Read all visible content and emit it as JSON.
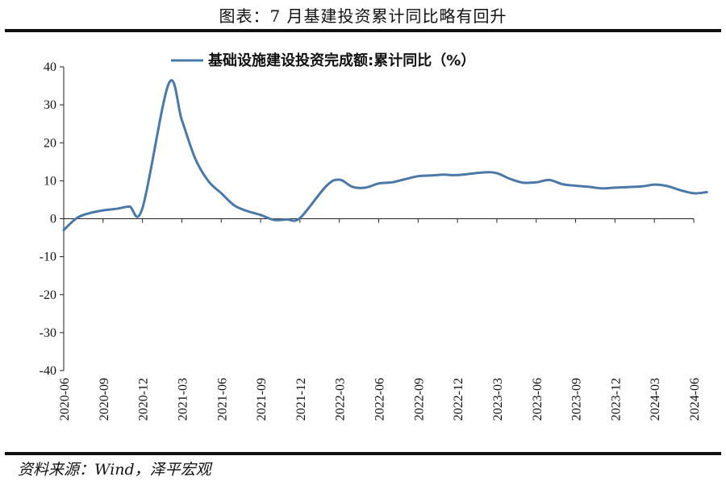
{
  "figure": {
    "title": "图表：7 月基建投资累计同比略有回升",
    "source": "资料来源：Wind，泽平宏观"
  },
  "colors": {
    "series": "#4a78a8",
    "axis": "#222222",
    "text": "#111111"
  },
  "chart_data": {
    "type": "line",
    "title": "",
    "xlabel": "",
    "ylabel": "",
    "ylim": [
      -40,
      40
    ],
    "yticks": [
      -40,
      -30,
      -20,
      -10,
      0,
      10,
      20,
      30,
      40
    ],
    "grid": false,
    "legend_position": "top-center",
    "x_tick_labels": [
      "2020-06",
      "2020-09",
      "2020-12",
      "2021-03",
      "2021-06",
      "2021-09",
      "2021-12",
      "2022-03",
      "2022-06",
      "2022-09",
      "2022-12",
      "2023-03",
      "2023-06",
      "2023-09",
      "2023-12",
      "2024-03",
      "2024-06"
    ],
    "series": [
      {
        "name": "基础设施建设投资完成额:累计同比（%）",
        "x": [
          "2020-06",
          "2020-07",
          "2020-08",
          "2020-09",
          "2020-10",
          "2020-11",
          "2020-12",
          "2021-02",
          "2021-03",
          "2021-04",
          "2021-05",
          "2021-06",
          "2021-07",
          "2021-08",
          "2021-09",
          "2021-10",
          "2021-11",
          "2021-12",
          "2022-02",
          "2022-03",
          "2022-04",
          "2022-05",
          "2022-06",
          "2022-07",
          "2022-08",
          "2022-09",
          "2022-10",
          "2022-11",
          "2022-12",
          "2023-02",
          "2023-03",
          "2023-04",
          "2023-05",
          "2023-06",
          "2023-07",
          "2023-08",
          "2023-09",
          "2023-10",
          "2023-11",
          "2023-12",
          "2024-02",
          "2024-03",
          "2024-04",
          "2024-05",
          "2024-06",
          "2024-07"
        ],
        "values": [
          -3.0,
          0.2,
          1.5,
          2.2,
          2.6,
          3.2,
          2.8,
          35.6,
          26.0,
          16.0,
          10.0,
          6.7,
          3.5,
          2.0,
          1.0,
          -0.3,
          -0.2,
          0.2,
          8.6,
          10.3,
          8.4,
          8.2,
          9.3,
          9.6,
          10.4,
          11.2,
          11.4,
          11.6,
          11.5,
          12.2,
          12.0,
          10.5,
          9.5,
          9.6,
          10.2,
          9.1,
          8.7,
          8.4,
          8.0,
          8.2,
          8.5,
          9.0,
          8.6,
          7.5,
          6.7,
          7.0
        ]
      }
    ]
  }
}
